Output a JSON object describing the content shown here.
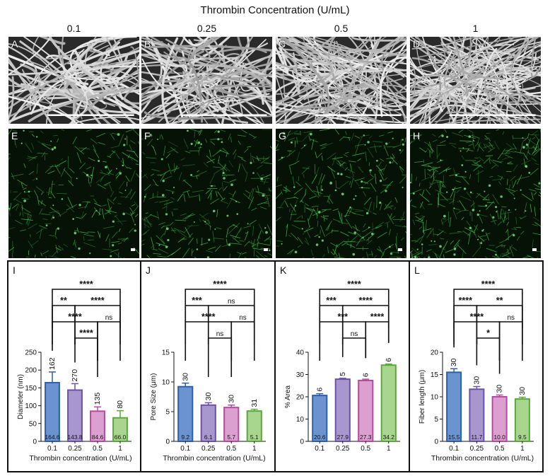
{
  "figure": {
    "title": "Thrombin Concentration (U/mL)",
    "columns": [
      "0.1",
      "0.25",
      "0.5",
      "1"
    ],
    "sem_letters": [
      "A",
      "B",
      "C",
      "D"
    ],
    "confocal_letters": [
      "E",
      "F",
      "G",
      "H"
    ],
    "chart_letters": [
      "I",
      "J",
      "K",
      "L"
    ],
    "colors": {
      "blue": "#6a93cf",
      "blue_edge": "#2f5ea8",
      "purple": "#a896cf",
      "purple_edge": "#6a52a6",
      "pink": "#dba0cf",
      "pink_edge": "#b54a9e",
      "green": "#a9d68e",
      "green_edge": "#5da63d"
    }
  },
  "chart_data": [
    {
      "type": "bar",
      "panel": "I",
      "categories": [
        "0.1",
        "0.25",
        "0.5",
        "1"
      ],
      "values": [
        164.6,
        143.8,
        84.6,
        66.0
      ],
      "errors": [
        30,
        18,
        12,
        20
      ],
      "value_labels": [
        "164.6",
        "143.8",
        "84.6",
        "66.0"
      ],
      "n_labels": [
        "162",
        "270",
        "135",
        "80"
      ],
      "xlabel": "Thrombin concentration (U/mL)",
      "ylabel": "Diameter (nm)",
      "ylim": [
        0,
        250
      ],
      "yticks": [
        0,
        50,
        100,
        150,
        200,
        250
      ],
      "significance": [
        {
          "from": 0,
          "to": 3,
          "label": "****"
        },
        {
          "from": 1,
          "to": 3,
          "label": "****"
        },
        {
          "from": 0,
          "to": 2,
          "label": "****"
        },
        {
          "from": 1,
          "to": 2,
          "label": "****"
        },
        {
          "from": 0,
          "to": 1,
          "label": "**"
        },
        {
          "from": 2,
          "to": 3,
          "label": "ns"
        }
      ]
    },
    {
      "type": "bar",
      "panel": "J",
      "categories": [
        "0.1",
        "0.25",
        "0.5",
        "1"
      ],
      "values": [
        9.2,
        6.1,
        5.7,
        5.1
      ],
      "errors": [
        0.6,
        0.4,
        0.4,
        0.3
      ],
      "value_labels": [
        "9.2",
        "6.1",
        "5.7",
        "5.1"
      ],
      "n_labels": [
        "30",
        "30",
        "30",
        "31"
      ],
      "xlabel": "Thrombin concentration (U/mL)",
      "ylabel": "Pore Size (μm)",
      "ylim": [
        0,
        15
      ],
      "yticks": [
        0,
        5,
        10,
        15
      ],
      "significance": [
        {
          "from": 0,
          "to": 3,
          "label": "****"
        },
        {
          "from": 1,
          "to": 3,
          "label": "ns"
        },
        {
          "from": 0,
          "to": 2,
          "label": "****"
        },
        {
          "from": 0,
          "to": 1,
          "label": "***"
        },
        {
          "from": 1,
          "to": 2,
          "label": "ns"
        },
        {
          "from": 2,
          "to": 3,
          "label": "ns"
        }
      ]
    },
    {
      "type": "bar",
      "panel": "K",
      "categories": [
        "0.1",
        "0.25",
        "0.5",
        "1"
      ],
      "values": [
        20.6,
        27.9,
        27.3,
        34.2
      ],
      "errors": [
        0.8,
        0.4,
        0.6,
        0.5
      ],
      "value_labels": [
        "20.6",
        "27.9",
        "27.3",
        "34.2"
      ],
      "n_labels": [
        "6",
        "5",
        "6",
        "6"
      ],
      "xlabel": "",
      "ylabel": "% Area",
      "ylim": [
        0,
        40
      ],
      "yticks": [
        0,
        10,
        20,
        30,
        40
      ],
      "significance": [
        {
          "from": 0,
          "to": 3,
          "label": "****"
        },
        {
          "from": 1,
          "to": 3,
          "label": "****"
        },
        {
          "from": 0,
          "to": 2,
          "label": "***"
        },
        {
          "from": 2,
          "to": 3,
          "label": "****"
        },
        {
          "from": 0,
          "to": 1,
          "label": "***"
        },
        {
          "from": 1,
          "to": 2,
          "label": "ns"
        }
      ]
    },
    {
      "type": "bar",
      "panel": "L",
      "categories": [
        "0.1",
        "0.25",
        "0.5",
        "1"
      ],
      "values": [
        15.5,
        11.7,
        10.0,
        9.5
      ],
      "errors": [
        0.8,
        0.6,
        0.4,
        0.4
      ],
      "value_labels": [
        "15.5",
        "11.7",
        "10.0",
        "9.5"
      ],
      "n_labels": [
        "30",
        "30",
        "30",
        "30"
      ],
      "xlabel": "Thrombin concentration (U/mL)",
      "ylabel": "Fiber length (μm)",
      "ylim": [
        0,
        20
      ],
      "yticks": [
        0,
        5,
        10,
        15,
        20
      ],
      "significance": [
        {
          "from": 0,
          "to": 3,
          "label": "****"
        },
        {
          "from": 1,
          "to": 3,
          "label": "**"
        },
        {
          "from": 0,
          "to": 2,
          "label": "****"
        },
        {
          "from": 0,
          "to": 1,
          "label": "****"
        },
        {
          "from": 1,
          "to": 2,
          "label": "*"
        },
        {
          "from": 2,
          "to": 3,
          "label": "ns"
        }
      ]
    }
  ]
}
